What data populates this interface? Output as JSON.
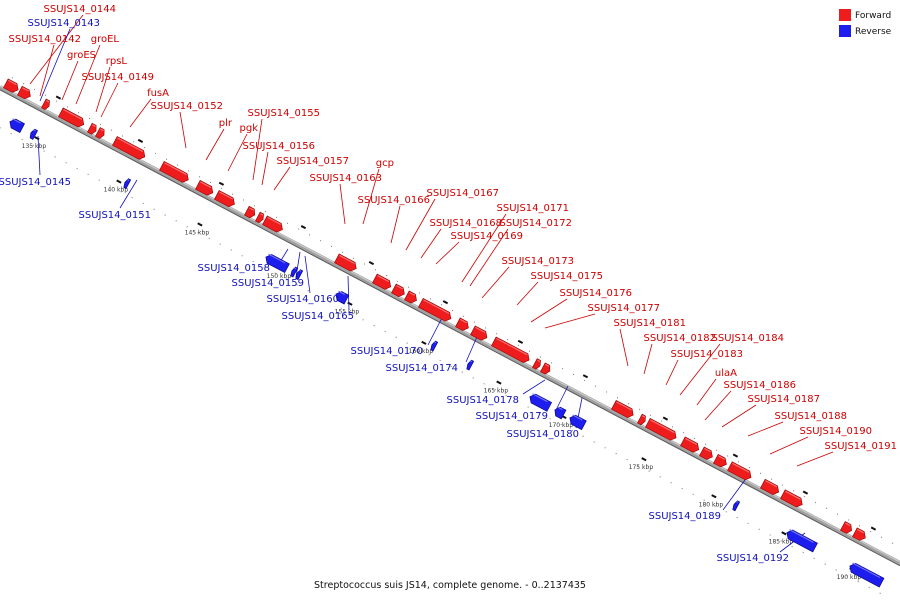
{
  "caption": "Streptococcus suis JS14, complete genome. - 0..2137435",
  "legend": [
    {
      "label": "Forward",
      "color": "#ee1c1c"
    },
    {
      "label": "Reverse",
      "color": "#1d1dee"
    }
  ],
  "colors": {
    "forward": "#ee1c1c",
    "reverse": "#1d1dee",
    "backbone": "#888888",
    "text_forward": "#cc0000",
    "text_reverse": "#1010bb"
  },
  "ticks": [
    {
      "kbp": 135,
      "label": "135 kbp"
    },
    {
      "kbp": 140,
      "label": "140 kbp"
    },
    {
      "kbp": 145,
      "label": "145 kbp"
    },
    {
      "kbp": 150,
      "label": "150 kbp"
    },
    {
      "kbp": 155,
      "label": "155 kbp"
    },
    {
      "kbp": 160,
      "label": "160 kbp"
    },
    {
      "kbp": 165,
      "label": "165 kbp"
    },
    {
      "kbp": 170,
      "label": "170 kbp"
    },
    {
      "kbp": 175,
      "label": "175 kbp"
    },
    {
      "kbp": 180,
      "label": "180 kbp"
    },
    {
      "kbp": 185,
      "label": "185 kbp"
    },
    {
      "kbp": 190,
      "label": "190 kbp"
    }
  ],
  "forward_labels": [
    "SSUJS14_0144",
    "SSUJS14_0142",
    "groES",
    "groEL",
    "rpsL",
    "SSUJS14_0149",
    "fusA",
    "SSUJS14_0152",
    "plr",
    "pgk",
    "SSUJS14_0155",
    "SSUJS14_0156",
    "SSUJS14_0157",
    "gcp",
    "SSUJS14_0163",
    "SSUJS14_0166",
    "SSUJS14_0167",
    "SSUJS14_0168",
    "SSUJS14_0171",
    "SSUJS14_0172",
    "SSUJS14_0169",
    "SSUJS14_0173",
    "SSUJS14_0175",
    "SSUJS14_0176",
    "SSUJS14_0177",
    "SSUJS14_0181",
    "SSUJS14_0182",
    "SSUJS14_0184",
    "SSUJS14_0183",
    "ulaA",
    "SSUJS14_0186",
    "SSUJS14_0187",
    "SSUJS14_0188",
    "SSUJS14_0190",
    "SSUJS14_0191"
  ],
  "reverse_labels": [
    "SSUJS14_0143",
    "SSUJS14_0145",
    "SSUJS14_0151",
    "SSUJS14_0158",
    "SSUJS14_0159",
    "SSUJS14_0160",
    "SSUJS14_0165",
    "SSUJS14_0170",
    "SSUJS14_0174",
    "SSUJS14_0178",
    "SSUJS14_0179",
    "SSUJS14_0180",
    "SSUJS14_0189",
    "SSUJS14_0192"
  ]
}
